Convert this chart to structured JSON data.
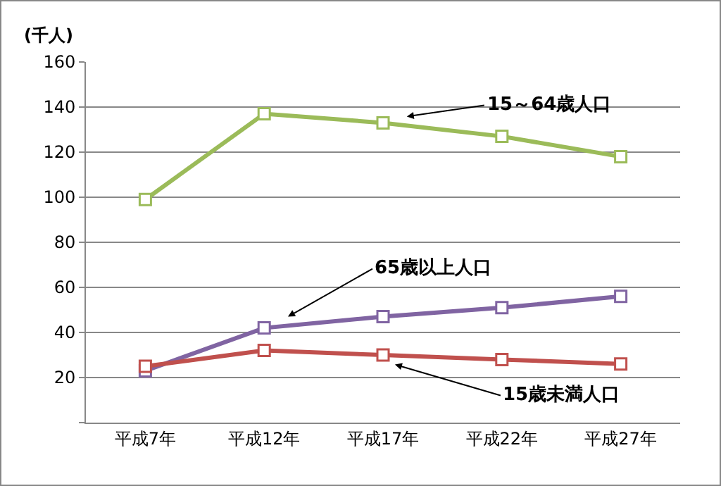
{
  "chart_data": {
    "type": "line",
    "ylabel": "(千人)",
    "categories": [
      "平成7年",
      "平成12年",
      "平成17年",
      "平成22年",
      "平成27年"
    ],
    "series": [
      {
        "name": "15～64歳人口",
        "color": "#9bbb59",
        "values": [
          99,
          137,
          133,
          127,
          118
        ]
      },
      {
        "name": "65歳以上人口",
        "color": "#8064a2",
        "values": [
          23,
          42,
          47,
          51,
          56
        ]
      },
      {
        "name": "15歳未満人口",
        "color": "#c0504d",
        "values": [
          25,
          32,
          30,
          28,
          26
        ]
      }
    ],
    "ylim": [
      0,
      160
    ],
    "yticks": [
      {
        "value": 0,
        "label": null
      },
      20,
      40,
      60,
      80,
      100,
      120,
      140,
      160
    ],
    "grid": "y",
    "legend": false,
    "marker": "square",
    "line_style": "solid"
  }
}
